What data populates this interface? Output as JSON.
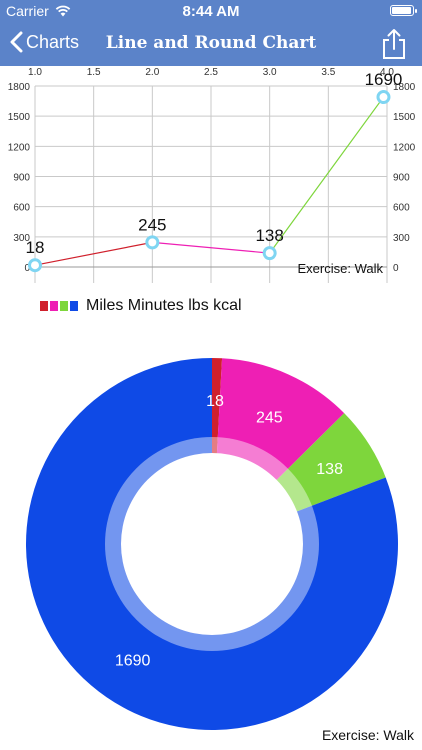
{
  "status_bar": {
    "carrier": "Carrier",
    "time": "8:44 AM",
    "battery_level": 1.0
  },
  "nav": {
    "back_label": "Charts",
    "title": "Line and Round Chart"
  },
  "colors": {
    "miles": "#d0202c",
    "minutes": "#ee1fb4",
    "lbs": "#7ed63c",
    "kcal": "#0f4ae6",
    "nav": "#5b83c9",
    "marker": "#7fd5f2"
  },
  "legend": {
    "text": "Miles Minutes lbs kcal"
  },
  "chart_data": [
    {
      "type": "line",
      "x": [
        1.0,
        2.0,
        3.0,
        3.97
      ],
      "values": [
        18,
        245,
        138,
        1690
      ],
      "point_labels": [
        "18",
        "245",
        "138",
        "1690"
      ],
      "segment_colors": [
        "#d0202c",
        "#ee1fb4",
        "#7ed63c"
      ],
      "xlim": [
        1.0,
        4.0
      ],
      "ylim": [
        0,
        1800
      ],
      "x_ticks": [
        "1.0",
        "1.5",
        "2.0",
        "2.5",
        "3.0",
        "3.5",
        "4.0"
      ],
      "y_ticks": [
        "0",
        "300",
        "600",
        "900",
        "1200",
        "1500",
        "1800"
      ],
      "grid": true,
      "annotation": "Exercise: Walk"
    },
    {
      "type": "pie",
      "labels": [
        "Miles",
        "Minutes",
        "lbs",
        "kcal"
      ],
      "values": [
        18,
        245,
        138,
        1690
      ],
      "value_labels": [
        "18",
        "245",
        "138",
        "1690"
      ],
      "colors": [
        "#d0202c",
        "#ee1fb4",
        "#7ed63c",
        "#0f4ae6"
      ],
      "hole": true,
      "annotation": "Exercise: Walk"
    }
  ]
}
